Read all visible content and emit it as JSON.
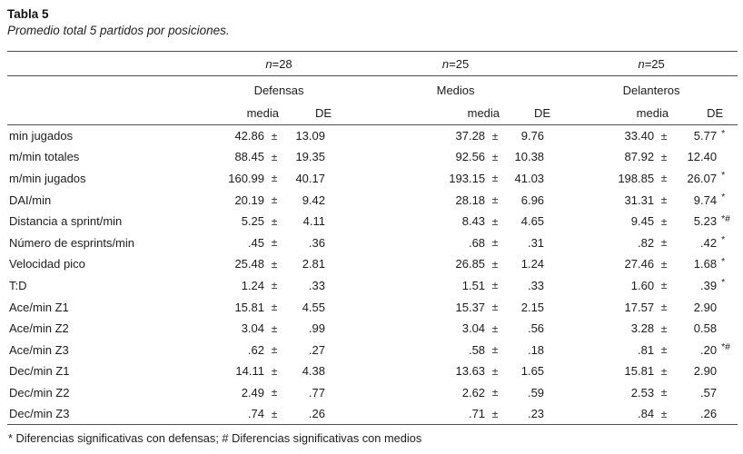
{
  "table": {
    "title": "Tabla 5",
    "subtitle": "Promedio total 5 partidos por posiciones.",
    "pm": "±",
    "groups": [
      {
        "n_prefix": "n",
        "n_value": "=28",
        "name": "Defensas"
      },
      {
        "n_prefix": "n",
        "n_value": "=25",
        "name": "Medios"
      },
      {
        "n_prefix": "n",
        "n_value": "=25",
        "name": "Delanteros"
      }
    ],
    "col_headers": {
      "media": "media",
      "de": "DE"
    },
    "rows": [
      {
        "label": "min jugados",
        "values": [
          {
            "media": "42.86",
            "de": "13.09",
            "sig": ""
          },
          {
            "media": "37.28",
            "de": "9.76",
            "sig": ""
          },
          {
            "media": "33.40",
            "de": "5.77",
            "sig": "*"
          }
        ]
      },
      {
        "label": "m/min totales",
        "values": [
          {
            "media": "88.45",
            "de": "19.35",
            "sig": ""
          },
          {
            "media": "92.56",
            "de": "10.38",
            "sig": ""
          },
          {
            "media": "87.92",
            "de": "12.40",
            "sig": ""
          }
        ]
      },
      {
        "label": "m/min jugados",
        "values": [
          {
            "media": "160.99",
            "de": "40.17",
            "sig": ""
          },
          {
            "media": "193.15",
            "de": "41.03",
            "sig": ""
          },
          {
            "media": "198.85",
            "de": "26.07",
            "sig": "*"
          }
        ]
      },
      {
        "label": "DAI/min",
        "values": [
          {
            "media": "20.19",
            "de": "9.42",
            "sig": ""
          },
          {
            "media": "28.18",
            "de": "6.96",
            "sig": ""
          },
          {
            "media": "31.31",
            "de": "9.74",
            "sig": "*"
          }
        ]
      },
      {
        "label": "Distancia a sprint/min",
        "values": [
          {
            "media": "5.25",
            "de": "4.11",
            "sig": ""
          },
          {
            "media": "8.43",
            "de": "4.65",
            "sig": ""
          },
          {
            "media": "9.45",
            "de": "5.23",
            "sig": "*#"
          }
        ]
      },
      {
        "label": "Número de esprints/min",
        "values": [
          {
            "media": ".45",
            "de": ".36",
            "sig": ""
          },
          {
            "media": ".68",
            "de": ".31",
            "sig": ""
          },
          {
            "media": ".82",
            "de": ".42",
            "sig": "*"
          }
        ]
      },
      {
        "label": "Velocidad pico",
        "values": [
          {
            "media": "25.48",
            "de": "2.81",
            "sig": ""
          },
          {
            "media": "26.85",
            "de": "1.24",
            "sig": ""
          },
          {
            "media": "27.46",
            "de": "1.68",
            "sig": "*"
          }
        ]
      },
      {
        "label": "T:D",
        "values": [
          {
            "media": "1.24",
            "de": ".33",
            "sig": ""
          },
          {
            "media": "1.51",
            "de": ".33",
            "sig": ""
          },
          {
            "media": "1.60",
            "de": ".39",
            "sig": "*"
          }
        ]
      },
      {
        "label": "Ace/min Z1",
        "values": [
          {
            "media": "15.81",
            "de": "4.55",
            "sig": ""
          },
          {
            "media": "15.37",
            "de": "2.15",
            "sig": ""
          },
          {
            "media": "17.57",
            "de": "2.90",
            "sig": ""
          }
        ]
      },
      {
        "label": "Ace/min Z2",
        "values": [
          {
            "media": "3.04",
            "de": ".99",
            "sig": ""
          },
          {
            "media": "3.04",
            "de": ".56",
            "sig": ""
          },
          {
            "media": "3.28",
            "de": "0.58",
            "sig": ""
          }
        ]
      },
      {
        "label": "Ace/min Z3",
        "values": [
          {
            "media": ".62",
            "de": ".27",
            "sig": ""
          },
          {
            "media": ".58",
            "de": ".18",
            "sig": ""
          },
          {
            "media": ".81",
            "de": ".20",
            "sig": "*#"
          }
        ]
      },
      {
        "label": "Dec/min Z1",
        "values": [
          {
            "media": "14.11",
            "de": "4.38",
            "sig": ""
          },
          {
            "media": "13.63",
            "de": "1.65",
            "sig": ""
          },
          {
            "media": "15.81",
            "de": "2.90",
            "sig": ""
          }
        ]
      },
      {
        "label": "Dec/min Z2",
        "values": [
          {
            "media": "2.49",
            "de": ".77",
            "sig": ""
          },
          {
            "media": "2.62",
            "de": ".59",
            "sig": ""
          },
          {
            "media": "2.53",
            "de": ".57",
            "sig": ""
          }
        ]
      },
      {
        "label": "Dec/min Z3",
        "values": [
          {
            "media": ".74",
            "de": ".26",
            "sig": ""
          },
          {
            "media": ".71",
            "de": ".23",
            "sig": ""
          },
          {
            "media": ".84",
            "de": ".26",
            "sig": ""
          }
        ]
      }
    ],
    "footnote": "* Diferencias significativas con defensas; # Diferencias significativas con medios",
    "colors": {
      "text": "#1c1c1c",
      "rule": "#4d4d4d",
      "background": "#ffffff"
    }
  }
}
